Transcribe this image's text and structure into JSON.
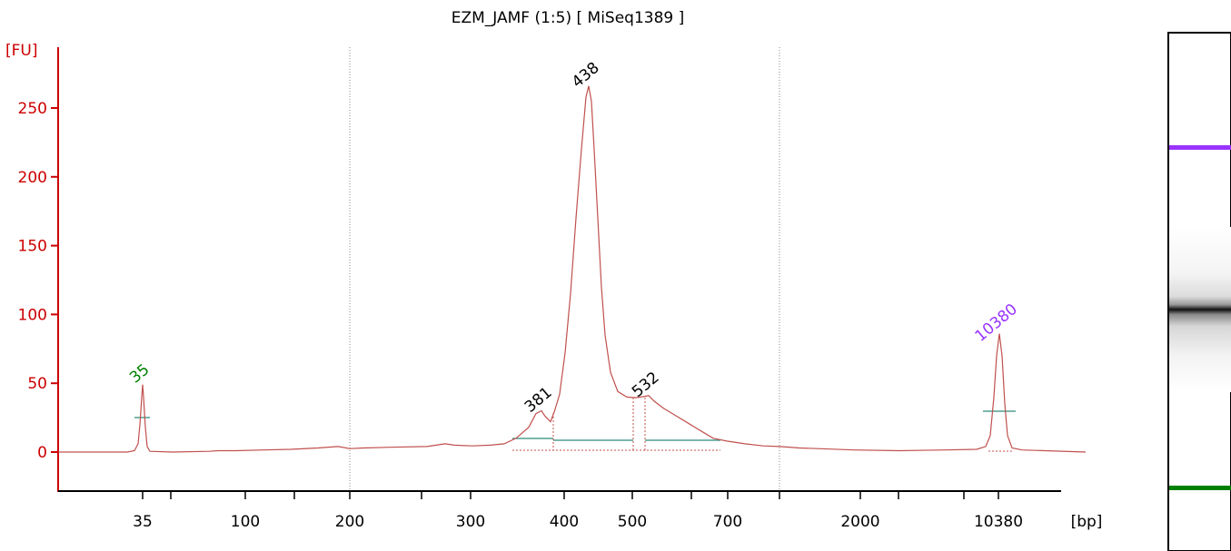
{
  "chart_data": {
    "type": "line",
    "title": "EZM_JAMF (1:5)  [ MiSeq1389 ]",
    "ylabel": "[FU]",
    "xlabel": "[bp]",
    "ylim": [
      -25,
      280
    ],
    "y_ticks": [
      0,
      50,
      100,
      150,
      200,
      250
    ],
    "x_tick_labels": [
      "35",
      "100",
      "200",
      "300",
      "400",
      "500",
      "700",
      "2000",
      "10380"
    ],
    "colors": {
      "trace": "#c0504d",
      "axis": "#cc0000",
      "lower_marker": "#008000",
      "upper_marker": "#9933ff",
      "region_line": "#2e8b7a"
    },
    "peaks": [
      {
        "label": "35",
        "fu": 49,
        "color": "#008000"
      },
      {
        "label": "381",
        "fu": 30,
        "color": "#000000"
      },
      {
        "label": "438",
        "fu": 266,
        "color": "#000000"
      },
      {
        "label": "532",
        "fu": 41,
        "color": "#000000"
      },
      {
        "label": "10380",
        "fu": 86,
        "color": "#9933ff"
      }
    ],
    "gel": {
      "bands": [
        {
          "name": "upper-marker",
          "color": "#9933ff"
        },
        {
          "name": "sample",
          "color": "#000000"
        },
        {
          "name": "lower-marker",
          "color": "#008000"
        }
      ]
    }
  }
}
